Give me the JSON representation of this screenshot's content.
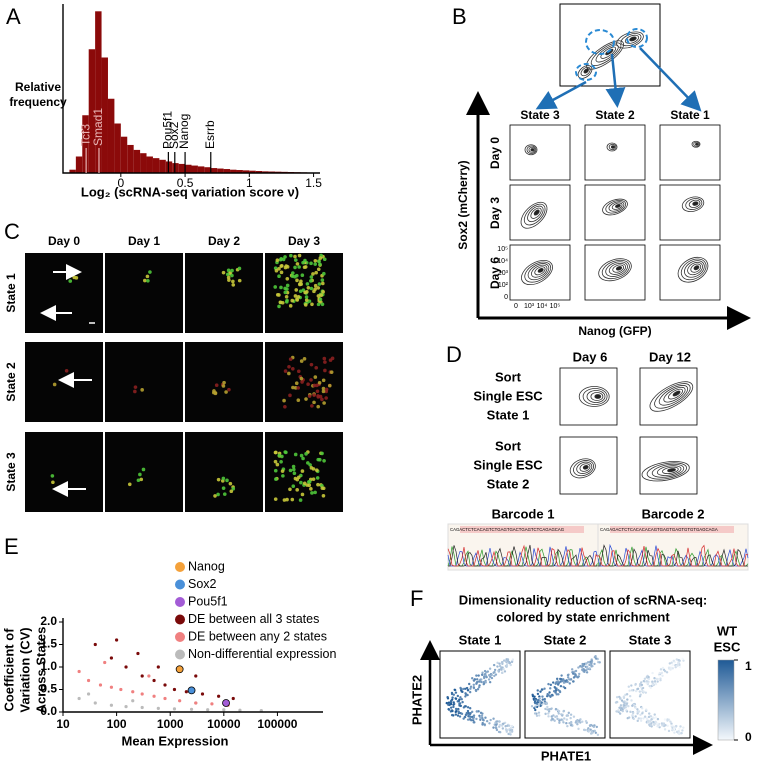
{
  "chart_data": [
    {
      "type": "histogram",
      "panel": "A",
      "ylabel_lines": [
        "Relative",
        "frequency"
      ],
      "xlabel": "Log₂ (scRNA-seq variation score ν)",
      "color": "#8b0a0a",
      "bins": [
        -0.4,
        -0.35,
        -0.3,
        -0.25,
        -0.2,
        -0.15,
        -0.1,
        -0.05,
        0,
        0.05,
        0.1,
        0.15,
        0.2,
        0.25,
        0.3,
        0.35,
        0.4,
        0.45,
        0.5,
        0.55,
        0.6,
        0.65,
        0.7,
        0.75,
        0.8,
        0.85,
        0.9,
        0.95,
        1.0,
        1.05,
        1.1,
        1.15,
        1.2,
        1.25,
        1.3,
        1.35,
        1.4,
        1.45,
        1.5
      ],
      "counts": [
        0.02,
        0.1,
        0.35,
        0.75,
        0.98,
        0.7,
        0.45,
        0.3,
        0.22,
        0.17,
        0.14,
        0.12,
        0.1,
        0.09,
        0.08,
        0.07,
        0.06,
        0.055,
        0.05,
        0.045,
        0.04,
        0.035,
        0.03,
        0.027,
        0.024,
        0.02,
        0.018,
        0.016,
        0.014,
        0.012,
        0.01,
        0.009,
        0.008,
        0.007,
        0.006,
        0.005,
        0.004,
        0.003
      ],
      "xlim": [
        -0.45,
        1.55
      ],
      "ylim": [
        0,
        1
      ],
      "xticks": [
        0,
        0.5,
        1,
        1.5
      ],
      "annotations": [
        {
          "text": "Tcf3",
          "x": -0.27
        },
        {
          "text": "Smad1",
          "x": -0.17
        },
        {
          "text": "Pou5f1",
          "x": 0.37
        },
        {
          "text": "Sox2",
          "x": 0.42
        },
        {
          "text": "Nanog",
          "x": 0.5
        },
        {
          "text": "Esrrb",
          "x": 0.7
        }
      ]
    },
    {
      "type": "scatter",
      "panel": "E",
      "ylabel_lines": [
        "Coefficient of",
        "Variation (CV)",
        "Across States"
      ],
      "xlabel": "Mean Expression",
      "xscale": "log",
      "xlim": [
        10,
        300000
      ],
      "ylim": [
        0,
        2
      ],
      "xticks": [
        10,
        100,
        1000,
        10000,
        100000
      ],
      "yticks": [
        {
          "value": 0,
          "label": "0.0"
        },
        0.5,
        {
          "value": 1,
          "label": "1.0"
        },
        1.5,
        {
          "value": 2,
          "label": "2.0"
        }
      ],
      "series": [
        {
          "name": "Nanog",
          "color": "#f4a13a",
          "x": [
            1500
          ],
          "values": [
            0.95
          ]
        },
        {
          "name": "Sox2",
          "color": "#4a90d9",
          "x": [
            2500
          ],
          "values": [
            0.48
          ]
        },
        {
          "name": "Pou5f1",
          "color": "#a35cd6",
          "x": [
            11000
          ],
          "values": [
            0.2
          ]
        },
        {
          "name": "DE between all 3 states",
          "color": "#7a0a0a",
          "x": [
            40,
            80,
            150,
            300,
            500,
            800,
            1200,
            2000,
            4000,
            8000,
            15000,
            250,
            600,
            100,
            3000
          ],
          "values": [
            1.5,
            1.2,
            1.0,
            0.8,
            0.7,
            0.6,
            0.5,
            0.45,
            0.4,
            0.35,
            0.3,
            1.3,
            1.0,
            1.6,
            0.8
          ]
        },
        {
          "name": "DE between any 2 states",
          "color": "#f08080",
          "x": [
            20,
            30,
            50,
            80,
            120,
            200,
            300,
            500,
            800,
            1500,
            3000,
            6000,
            12000,
            60,
            400
          ],
          "values": [
            0.9,
            0.7,
            0.6,
            0.55,
            0.5,
            0.45,
            0.4,
            0.35,
            0.3,
            0.25,
            0.2,
            0.18,
            0.15,
            1.1,
            0.8
          ]
        },
        {
          "name": "Non-differential expression",
          "color": "#bbbbbb",
          "x": [
            20,
            40,
            80,
            150,
            300,
            600,
            1200,
            2500,
            5000,
            10000,
            20000,
            50000,
            30,
            200,
            3000
          ],
          "values": [
            0.3,
            0.2,
            0.15,
            0.12,
            0.1,
            0.08,
            0.07,
            0.06,
            0.05,
            0.05,
            0.04,
            0.03,
            0.4,
            0.25,
            0.2
          ]
        }
      ]
    }
  ],
  "panel_B": {
    "label": "B",
    "columns": [
      "State 3",
      "State 2",
      "State 1"
    ],
    "rows": [
      "Day 0",
      "Day 3",
      "Day 6"
    ],
    "ylabel": "Sox2 (mCherry)",
    "xlabel": "Nanog (GFP)",
    "y_tick_labels": [
      "10⁵",
      "10⁴",
      "10³",
      "10²",
      "0"
    ],
    "x_tick_labels": [
      "0",
      "10³",
      "10⁴",
      "10⁵"
    ]
  },
  "panel_C": {
    "label": "C",
    "columns": [
      "Day 0",
      "Day 1",
      "Day 2",
      "Day 3"
    ],
    "rows": [
      "State 1",
      "State 2",
      "State 3"
    ]
  },
  "panel_D": {
    "label": "D",
    "columns": [
      "Day 6",
      "Day 12"
    ],
    "rows": [
      [
        "Sort",
        "Single ESC",
        "State 1"
      ],
      [
        "Sort",
        "Single ESC",
        "State 2"
      ]
    ],
    "barcodes": [
      {
        "label": "Barcode 1",
        "sequence": "CAGACTCTCACAGTCTGAGTGACTGAGTCTCAGAGCAG"
      },
      {
        "label": "Barcode 2",
        "sequence": "CAGAGACTCTCACACACAGTGAGTGAGTGTGTGAGCAGA"
      }
    ]
  },
  "panel_F": {
    "label": "F",
    "title_lines": [
      "Dimensionality reduction of scRNA-seq:",
      "colored by state enrichment"
    ],
    "columns": [
      "State 1",
      "State 2",
      "State 3"
    ],
    "colorbar_title_lines": [
      "WT",
      "ESC"
    ],
    "colorbar_lim": [
      0,
      1
    ],
    "colorbar_ticks": [
      1,
      0
    ],
    "xlabel": "PHATE1",
    "ylabel": "PHATE2"
  }
}
